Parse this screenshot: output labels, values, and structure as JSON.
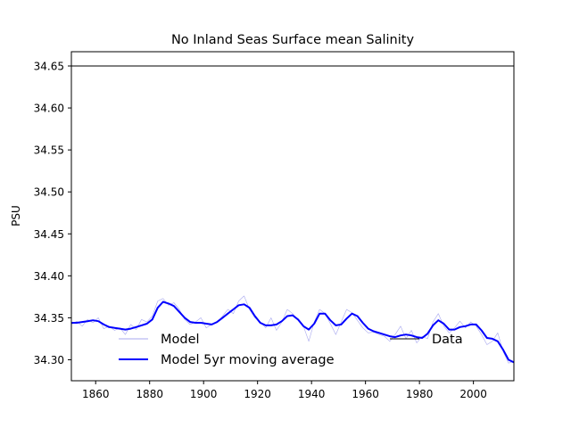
{
  "chart_data": {
    "type": "line",
    "title": "No Inland Seas Surface mean Salinity",
    "xlabel": "",
    "ylabel": "PSU",
    "xlim": [
      1851,
      2015
    ],
    "ylim": [
      34.275,
      34.667
    ],
    "xticks": [
      "1860",
      "1880",
      "1900",
      "1920",
      "1940",
      "1960",
      "1980",
      "2000"
    ],
    "yticks": [
      "34.30",
      "34.35",
      "34.40",
      "34.45",
      "34.50",
      "34.55",
      "34.60",
      "34.65"
    ],
    "grid": false,
    "legend": {
      "placement": "lower-left",
      "entries": [
        "Model",
        "Model 5yr moving average"
      ]
    },
    "legend2": {
      "placement": "lower-right",
      "entries": [
        "Data"
      ]
    },
    "series": [
      {
        "name": "Model",
        "color": "#a8a8ef",
        "x": [
          1851,
          1853,
          1855,
          1857,
          1859,
          1861,
          1863,
          1865,
          1867,
          1869,
          1871,
          1873,
          1875,
          1877,
          1879,
          1881,
          1883,
          1885,
          1887,
          1889,
          1891,
          1893,
          1895,
          1897,
          1899,
          1901,
          1903,
          1905,
          1907,
          1909,
          1911,
          1913,
          1915,
          1917,
          1919,
          1921,
          1923,
          1925,
          1927,
          1929,
          1931,
          1933,
          1935,
          1937,
          1939,
          1941,
          1943,
          1945,
          1947,
          1949,
          1951,
          1953,
          1955,
          1957,
          1959,
          1961,
          1963,
          1965,
          1967,
          1969,
          1971,
          1973,
          1975,
          1977,
          1979,
          1981,
          1983,
          1985,
          1987,
          1989,
          1991,
          1993,
          1995,
          1997,
          1999,
          2001,
          2003,
          2005,
          2007,
          2009,
          2011,
          2013,
          2015
        ],
        "y": [
          34.342,
          34.346,
          34.34,
          34.348,
          34.344,
          34.35,
          34.337,
          34.34,
          34.335,
          34.338,
          34.33,
          34.342,
          34.336,
          34.348,
          34.345,
          34.352,
          34.37,
          34.373,
          34.365,
          34.368,
          34.36,
          34.348,
          34.342,
          34.345,
          34.35,
          34.338,
          34.342,
          34.344,
          34.352,
          34.36,
          34.355,
          34.37,
          34.376,
          34.36,
          34.35,
          34.345,
          34.338,
          34.35,
          34.335,
          34.345,
          34.36,
          34.355,
          34.347,
          34.34,
          34.322,
          34.345,
          34.36,
          34.355,
          34.343,
          34.33,
          34.345,
          34.36,
          34.356,
          34.347,
          34.338,
          34.332,
          34.333,
          34.33,
          34.328,
          34.322,
          34.33,
          34.34,
          34.325,
          34.335,
          34.32,
          34.328,
          34.325,
          34.345,
          34.355,
          34.34,
          34.332,
          34.338,
          34.346,
          34.338,
          34.345,
          34.34,
          34.33,
          34.318,
          34.322,
          34.332,
          34.31,
          34.296,
          34.298
        ]
      },
      {
        "name": "Model 5yr moving average",
        "color": "#0000ff",
        "x": [
          1851,
          1853,
          1855,
          1857,
          1859,
          1861,
          1863,
          1865,
          1867,
          1869,
          1871,
          1873,
          1875,
          1877,
          1879,
          1881,
          1883,
          1885,
          1887,
          1889,
          1891,
          1893,
          1895,
          1897,
          1899,
          1901,
          1903,
          1905,
          1907,
          1909,
          1911,
          1913,
          1915,
          1917,
          1919,
          1921,
          1923,
          1925,
          1927,
          1929,
          1931,
          1933,
          1935,
          1937,
          1939,
          1941,
          1943,
          1945,
          1947,
          1949,
          1951,
          1953,
          1955,
          1957,
          1959,
          1961,
          1963,
          1965,
          1967,
          1969,
          1971,
          1973,
          1975,
          1977,
          1979,
          1981,
          1983,
          1985,
          1987,
          1989,
          1991,
          1993,
          1995,
          1997,
          1999,
          2001,
          2003,
          2005,
          2007,
          2009,
          2011,
          2013,
          2015
        ],
        "y": [
          34.344,
          34.344,
          34.345,
          34.346,
          34.347,
          34.346,
          34.342,
          34.339,
          34.338,
          34.337,
          34.336,
          34.337,
          34.339,
          34.341,
          34.343,
          34.348,
          34.362,
          34.369,
          34.367,
          34.364,
          34.357,
          34.35,
          34.345,
          34.344,
          34.344,
          34.343,
          34.342,
          34.345,
          34.35,
          34.355,
          34.36,
          34.365,
          34.366,
          34.362,
          34.352,
          34.344,
          34.341,
          34.341,
          34.342,
          34.346,
          34.352,
          34.353,
          34.348,
          34.34,
          34.336,
          34.343,
          34.355,
          34.355,
          34.347,
          34.341,
          34.342,
          34.349,
          34.355,
          34.352,
          34.344,
          34.337,
          34.334,
          34.332,
          34.33,
          34.328,
          34.327,
          34.329,
          34.33,
          34.329,
          34.327,
          34.326,
          34.331,
          34.341,
          34.347,
          34.343,
          34.336,
          34.336,
          34.339,
          34.34,
          34.342,
          34.342,
          34.335,
          34.326,
          34.325,
          34.322,
          34.312,
          34.3,
          34.297
        ]
      },
      {
        "name": "Data",
        "color": "#000000",
        "x": [
          1851,
          2015
        ],
        "y": [
          34.65,
          34.65
        ]
      }
    ]
  }
}
